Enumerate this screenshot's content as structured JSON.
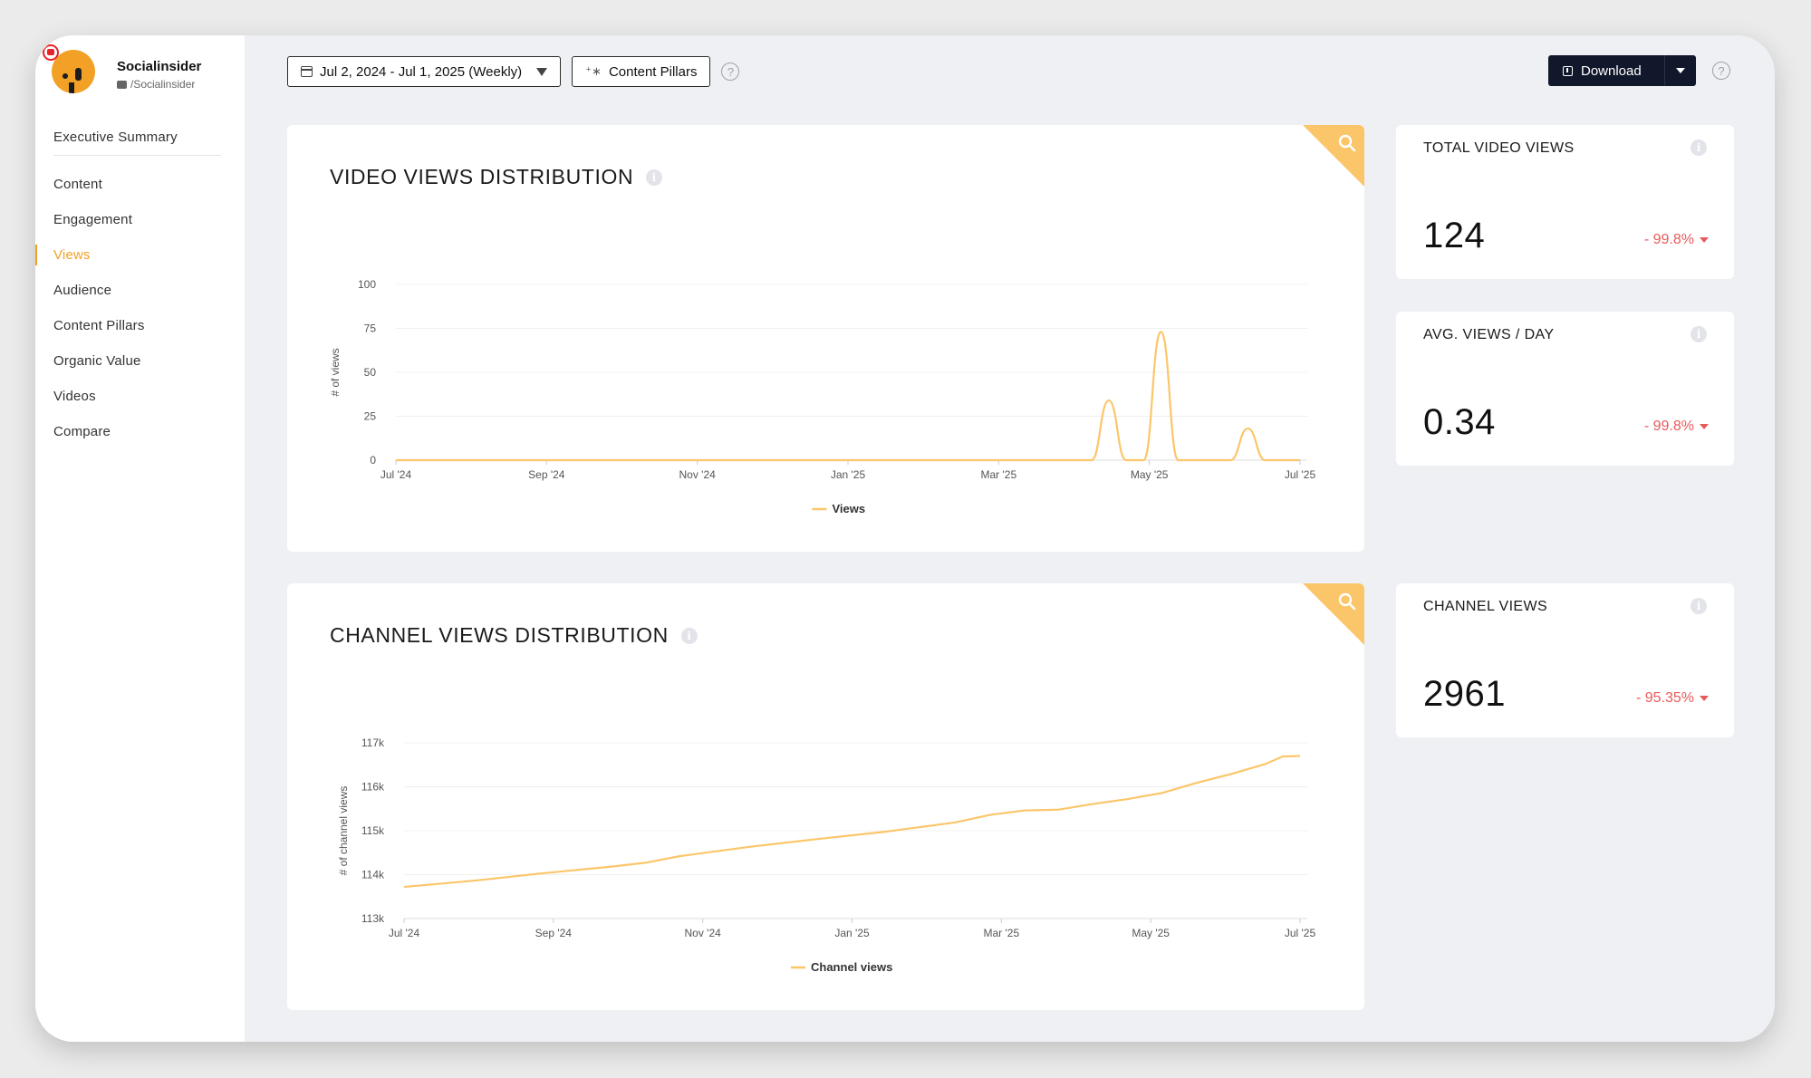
{
  "brand": {
    "name": "Socialinsider",
    "handle": "/Socialinsider"
  },
  "nav": {
    "items": [
      {
        "label": "Executive Summary",
        "active": false
      },
      {
        "label": "Content",
        "active": false
      },
      {
        "label": "Engagement",
        "active": false
      },
      {
        "label": "Views",
        "active": true
      },
      {
        "label": "Audience",
        "active": false
      },
      {
        "label": "Content Pillars",
        "active": false
      },
      {
        "label": "Organic Value",
        "active": false
      },
      {
        "label": "Videos",
        "active": false
      },
      {
        "label": "Compare",
        "active": false
      }
    ]
  },
  "toolbar": {
    "date_range": "Jul 2, 2024 - Jul 1, 2025 (Weekly)",
    "content_pillars": "Content Pillars",
    "download": "Download",
    "help": "?"
  },
  "stats": {
    "total_video_views": {
      "label": "TOTAL VIDEO VIEWS",
      "value": "124",
      "change": "- 99.8%"
    },
    "avg_views_day": {
      "label": "AVG. VIEWS / DAY",
      "value": "0.34",
      "change": "- 99.8%"
    },
    "channel_views": {
      "label": "CHANNEL VIEWS",
      "value": "2961",
      "change": "- 95.35%"
    }
  },
  "colors": {
    "accent": "#f2a126",
    "line": "#fbc66a",
    "negative": "#e85a5a",
    "dark": "#12182b"
  },
  "chart_data": [
    {
      "type": "line",
      "title": "VIDEO VIEWS DISTRIBUTION",
      "ylabel": "# of views",
      "xlabel": "",
      "ylim": [
        0,
        100
      ],
      "yticks": [
        "0",
        "25",
        "50",
        "75",
        "100"
      ],
      "xticks": [
        "Jul '24",
        "Sep '24",
        "Nov '24",
        "Jan '25",
        "Mar '25",
        "May '25",
        "Jul '25"
      ],
      "legend": "Views",
      "series": [
        {
          "name": "Views",
          "x_weeks": [
            0,
            40,
            41,
            42,
            43,
            44,
            45,
            46,
            47,
            48,
            49,
            50,
            51,
            52
          ],
          "values": [
            0,
            0,
            34,
            0,
            0,
            73,
            0,
            0,
            0,
            0,
            18,
            0,
            0,
            0
          ]
        }
      ]
    },
    {
      "type": "line",
      "title": "CHANNEL VIEWS DISTRIBUTION",
      "ylabel": "# of channel views",
      "xlabel": "",
      "ylim": [
        113000,
        117000
      ],
      "yticks": [
        "113k",
        "114k",
        "115k",
        "116k",
        "117k"
      ],
      "xticks": [
        "Jul '24",
        "Sep '24",
        "Nov '24",
        "Jan '25",
        "Mar '25",
        "May '25",
        "Jul '25"
      ],
      "legend": "Channel views",
      "series": [
        {
          "name": "Channel views",
          "x_weeks": [
            0,
            4,
            8,
            12,
            14,
            16,
            20,
            24,
            28,
            32,
            34,
            36,
            38,
            40,
            42,
            44,
            46,
            48,
            50,
            51,
            52
          ],
          "values": [
            113720,
            113860,
            114030,
            114180,
            114270,
            114420,
            114630,
            114810,
            114980,
            115190,
            115360,
            115460,
            115480,
            115610,
            115720,
            115860,
            116090,
            116290,
            116520,
            116690,
            116700
          ]
        }
      ]
    }
  ]
}
